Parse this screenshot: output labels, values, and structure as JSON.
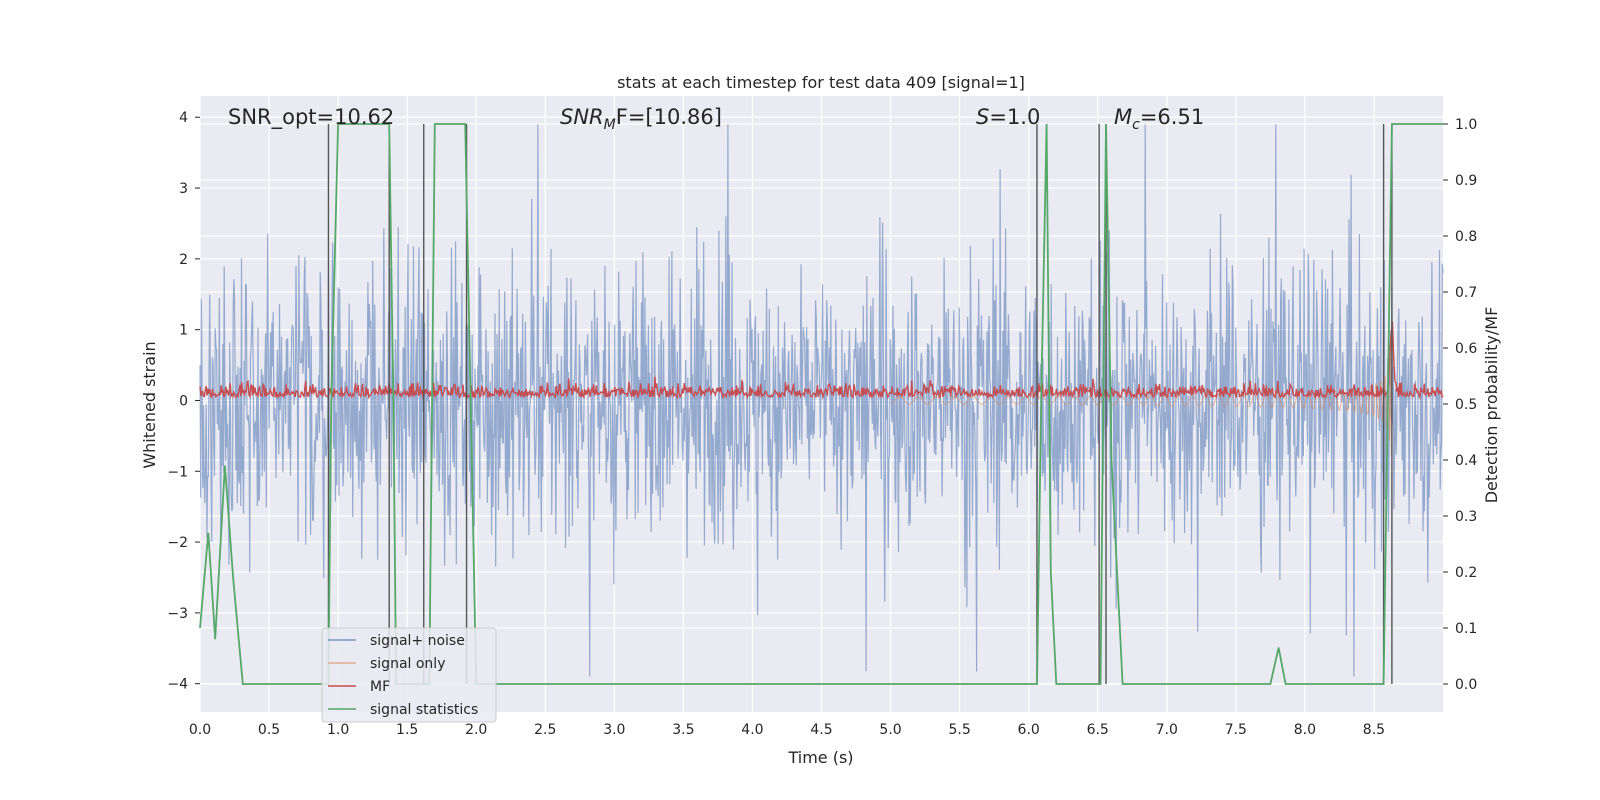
{
  "chart_data": {
    "type": "line",
    "title": "stats at each timestep for test data 409 [signal=1]",
    "xlabel": "Time (s)",
    "ylabel": "Whitened strain",
    "ylabel_right": "Detection probability/MF",
    "xlim": [
      0.0,
      9.0
    ],
    "ylim": [
      -4.4,
      4.3
    ],
    "ylim_right": [
      -0.05,
      1.05
    ],
    "x_ticks": [
      "0.0",
      "0.5",
      "1.0",
      "1.5",
      "2.0",
      "2.5",
      "3.0",
      "3.5",
      "4.0",
      "4.5",
      "5.0",
      "5.5",
      "6.0",
      "6.5",
      "7.0",
      "7.5",
      "8.0",
      "8.5"
    ],
    "y_ticks": [
      "4",
      "3",
      "2",
      "1",
      "0",
      "−1",
      "−2",
      "−3",
      "−4"
    ],
    "y_ticks_right": [
      "1.0",
      "0.9",
      "0.8",
      "0.7",
      "0.6",
      "0.5",
      "0.4",
      "0.3",
      "0.2",
      "0.1",
      "0.0"
    ],
    "grid": true,
    "legend_position": "lower-left",
    "annotations": {
      "snr_opt": "SNR_opt=10.62",
      "snr_mf_main": "SNR",
      "snr_mf_sub": "M",
      "snr_mf_rest": "F=[10.86]",
      "s_main": "S",
      "s_rest": "=1.0",
      "mc_main": "M",
      "mc_sub": "c",
      "mc_rest": "=6.51"
    },
    "series": [
      {
        "name": "signal+ noise",
        "color": "#4c72b0",
        "description_axis": "left"
      },
      {
        "name": "signal only",
        "color": "#dd8452",
        "description_axis": "left"
      },
      {
        "name": "MF",
        "color": "#c44e52",
        "description_axis": "right"
      },
      {
        "name": "signal statistics",
        "color": "#55a868",
        "description_axis": "right",
        "x": [
          0.0,
          0.06,
          0.11,
          0.18,
          0.24,
          0.31,
          0.93,
          0.95,
          1.0,
          1.37,
          1.4,
          1.42,
          1.66,
          1.7,
          1.92,
          1.96,
          2.0,
          6.06,
          6.09,
          6.13,
          6.16,
          6.2,
          6.27,
          6.52,
          6.56,
          6.6,
          6.68,
          7.75,
          7.81,
          7.86,
          8.57,
          8.63,
          8.66,
          9.0
        ],
        "y": [
          0.1,
          0.27,
          0.08,
          0.39,
          0.19,
          0.0,
          0.0,
          0.5,
          1.0,
          1.0,
          0.5,
          0.0,
          0.0,
          1.0,
          1.0,
          0.5,
          0.0,
          0.0,
          0.5,
          1.0,
          0.2,
          0.0,
          0.0,
          0.0,
          1.0,
          0.4,
          0.0,
          0.0,
          0.065,
          0.0,
          0.0,
          1.0,
          1.0,
          1.0
        ]
      }
    ],
    "vertical_markers": [
      0.93,
      1.37,
      1.62,
      1.93,
      6.06,
      6.51,
      6.56,
      8.57,
      8.63
    ]
  }
}
